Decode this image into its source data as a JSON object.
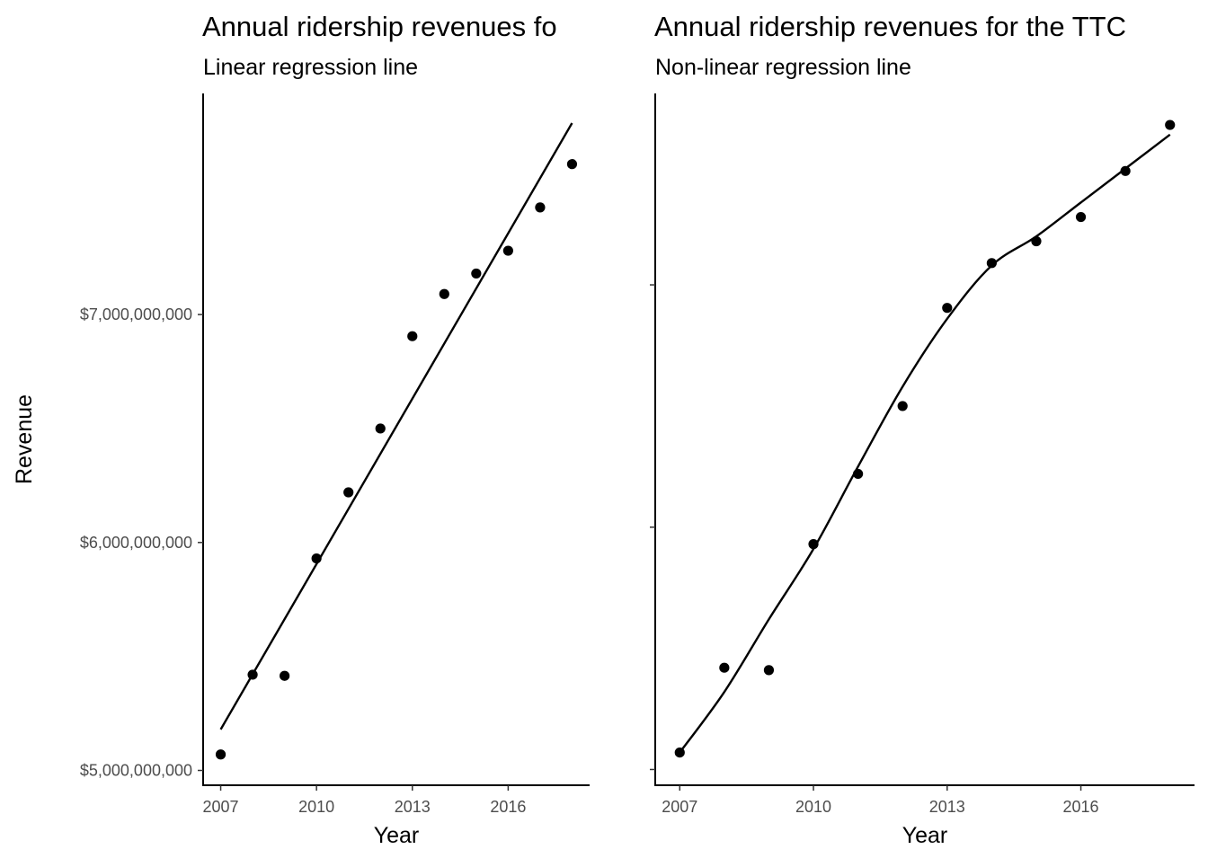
{
  "chart_data": [
    {
      "type": "scatter",
      "title": "Annual ridership revenues fo",
      "subtitle": "Linear regression line",
      "xlabel": "Year",
      "ylabel": "Revenue",
      "xlim": [
        2006.45,
        2018.55
      ],
      "ylim": [
        4935000000,
        7970000000
      ],
      "xticks": [
        2007,
        2010,
        2013,
        2016
      ],
      "xtick_labels": [
        "2007",
        "2010",
        "2013",
        "2016"
      ],
      "yticks": [
        5000000000,
        6000000000,
        7000000000
      ],
      "ytick_labels": [
        "$5,000,000,000",
        "$6,000,000,000",
        "$7,000,000,000"
      ],
      "grid": false,
      "series": [
        {
          "x": [
            2007,
            2008,
            2009,
            2010,
            2011,
            2012,
            2013,
            2014,
            2015,
            2016,
            2017,
            2018
          ],
          "values": [
            5070000000,
            5420000000,
            5415000000,
            5930000000,
            6220000000,
            6500000000,
            6905000000,
            7090000000,
            7180000000,
            7280000000,
            7470000000,
            7660000000
          ]
        }
      ],
      "fit": {
        "kind": "linear",
        "x": [
          2007,
          2018
        ],
        "values": [
          5180000000,
          7840000000
        ]
      }
    },
    {
      "type": "scatter",
      "title": "Annual ridership revenues for the TTC",
      "subtitle": "Non-linear regression line",
      "xlabel": "Year",
      "xlim": [
        2006.45,
        2018.55
      ],
      "ylim": [
        4935000000,
        7790000000
      ],
      "xticks": [
        2007,
        2010,
        2013,
        2016
      ],
      "xtick_labels": [
        "2007",
        "2010",
        "2013",
        "2016"
      ],
      "yticks": [
        5000000000,
        6000000000,
        7000000000
      ],
      "ytick_labels": [
        "",
        "",
        ""
      ],
      "grid": false,
      "series": [
        {
          "x": [
            2007,
            2008,
            2009,
            2010,
            2011,
            2012,
            2013,
            2014,
            2015,
            2016,
            2017,
            2018
          ],
          "values": [
            5070000000,
            5420000000,
            5410000000,
            5930000000,
            6220000000,
            6500000000,
            6905000000,
            7090000000,
            7180000000,
            7280000000,
            7470000000,
            7660000000
          ]
        }
      ],
      "fit": {
        "kind": "smooth",
        "x": [
          2007,
          2008,
          2009,
          2010,
          2011,
          2012,
          2013,
          2014,
          2015,
          2016,
          2017,
          2018
        ],
        "values": [
          5070000000,
          5320000000,
          5620000000,
          5910000000,
          6250000000,
          6580000000,
          6860000000,
          7080000000,
          7200000000,
          7340000000,
          7480000000,
          7620000000
        ]
      }
    }
  ]
}
